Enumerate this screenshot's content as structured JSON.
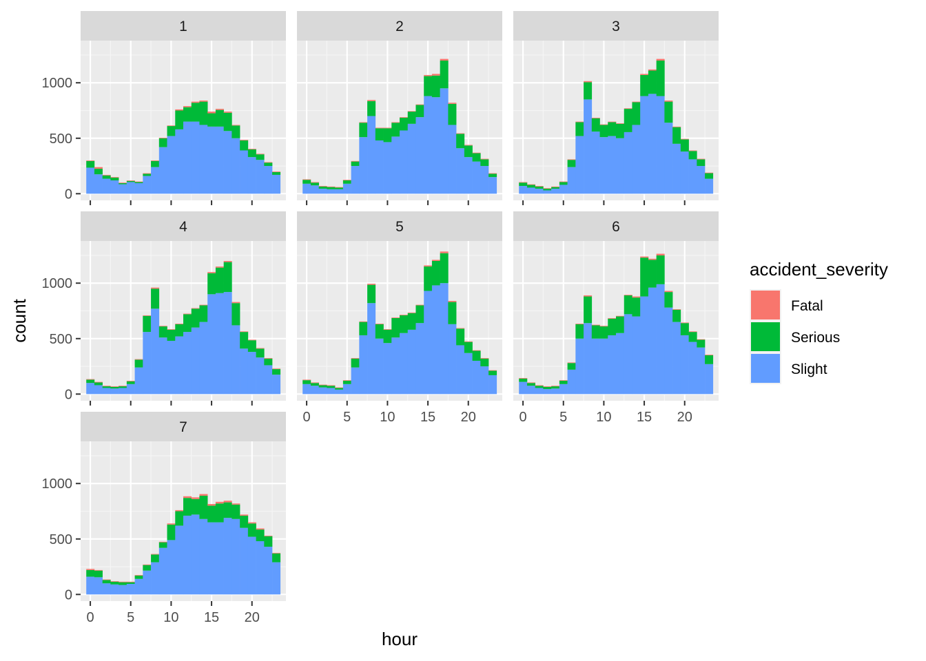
{
  "chart_data": {
    "type": "bar",
    "stacked": true,
    "facet_variable": "day_of_week",
    "panels": [
      "1",
      "2",
      "3",
      "4",
      "5",
      "6",
      "7"
    ],
    "xlabel": "hour",
    "ylabel": "count",
    "x_ticks": [
      0,
      5,
      10,
      15,
      20
    ],
    "y_ticks": [
      0,
      500,
      1000
    ],
    "xlim": [
      -1.2,
      24.2
    ],
    "ylim": [
      -60,
      1380
    ],
    "grid": true,
    "legend": {
      "title": "accident_severity",
      "position": "right",
      "entries": [
        "Fatal",
        "Serious",
        "Slight"
      ]
    },
    "colors": {
      "Fatal": "#F8766D",
      "Serious": "#00BA38",
      "Slight": "#619CFF"
    },
    "hours": [
      0,
      1,
      2,
      3,
      4,
      5,
      6,
      7,
      8,
      9,
      10,
      11,
      12,
      13,
      14,
      15,
      16,
      17,
      18,
      19,
      20,
      21,
      22,
      23
    ],
    "series": {
      "1": {
        "Slight": [
          235,
          175,
          135,
          120,
          85,
          105,
          95,
          160,
          240,
          420,
          520,
          580,
          650,
          650,
          620,
          605,
          605,
          565,
          500,
          390,
          330,
          305,
          250,
          170
        ],
        "Serious": [
          60,
          50,
          30,
          25,
          10,
          10,
          10,
          20,
          55,
          80,
          90,
          170,
          130,
          170,
          210,
          120,
          150,
          165,
          115,
          90,
          70,
          50,
          30,
          25
        ],
        "Fatal": [
          5,
          15,
          5,
          5,
          5,
          5,
          5,
          5,
          5,
          5,
          5,
          10,
          10,
          10,
          10,
          15,
          10,
          10,
          5,
          5,
          5,
          5,
          5,
          5
        ]
      },
      "2": {
        "Slight": [
          90,
          75,
          45,
          40,
          40,
          90,
          250,
          510,
          700,
          480,
          465,
          515,
          570,
          630,
          690,
          880,
          870,
          950,
          620,
          410,
          330,
          290,
          250,
          150
        ],
        "Serious": [
          35,
          25,
          20,
          20,
          15,
          30,
          40,
          130,
          135,
          110,
          125,
          125,
          115,
          110,
          110,
          180,
          195,
          250,
          190,
          130,
          105,
          75,
          60,
          30
        ],
        "Fatal": [
          5,
          5,
          5,
          5,
          5,
          5,
          5,
          5,
          10,
          5,
          5,
          5,
          5,
          5,
          5,
          10,
          15,
          15,
          10,
          5,
          5,
          5,
          5,
          5
        ]
      },
      "3": {
        "Slight": [
          70,
          55,
          45,
          30,
          45,
          80,
          240,
          520,
          850,
          560,
          510,
          520,
          500,
          555,
          620,
          880,
          900,
          880,
          640,
          450,
          380,
          310,
          250,
          135
        ],
        "Serious": [
          30,
          25,
          20,
          15,
          15,
          25,
          65,
          125,
          155,
          120,
          110,
          125,
          130,
          210,
          205,
          190,
          210,
          320,
          190,
          150,
          110,
          75,
          60,
          50
        ],
        "Fatal": [
          5,
          5,
          5,
          5,
          5,
          5,
          5,
          5,
          10,
          5,
          5,
          5,
          5,
          5,
          5,
          10,
          10,
          15,
          10,
          5,
          5,
          5,
          5,
          5
        ]
      },
      "4": {
        "Slight": [
          100,
          80,
          55,
          50,
          55,
          90,
          240,
          560,
          770,
          510,
          480,
          520,
          560,
          600,
          650,
          900,
          910,
          920,
          620,
          410,
          380,
          330,
          260,
          175
        ],
        "Serious": [
          30,
          25,
          15,
          15,
          15,
          25,
          70,
          145,
          180,
          100,
          100,
          110,
          160,
          170,
          150,
          190,
          230,
          270,
          200,
          150,
          105,
          80,
          60,
          50
        ],
        "Fatal": [
          5,
          5,
          5,
          5,
          5,
          5,
          5,
          5,
          10,
          5,
          5,
          5,
          5,
          5,
          5,
          10,
          10,
          10,
          10,
          5,
          5,
          5,
          5,
          5
        ]
      },
      "5": {
        "Slight": [
          90,
          75,
          60,
          55,
          40,
          90,
          240,
          530,
          820,
          500,
          460,
          510,
          550,
          580,
          640,
          930,
          980,
          1000,
          630,
          440,
          370,
          300,
          250,
          170
        ],
        "Serious": [
          35,
          25,
          20,
          20,
          15,
          30,
          80,
          120,
          165,
          130,
          120,
          175,
          160,
          150,
          160,
          220,
          220,
          270,
          200,
          150,
          100,
          90,
          70,
          40
        ],
        "Fatal": [
          5,
          5,
          5,
          5,
          5,
          5,
          5,
          5,
          10,
          5,
          5,
          5,
          5,
          5,
          5,
          10,
          10,
          15,
          10,
          5,
          5,
          5,
          5,
          5
        ]
      },
      "6": {
        "Slight": [
          110,
          75,
          55,
          45,
          50,
          90,
          220,
          500,
          640,
          500,
          500,
          530,
          550,
          720,
          700,
          880,
          960,
          990,
          780,
          650,
          530,
          470,
          420,
          270
        ],
        "Serious": [
          30,
          25,
          20,
          20,
          20,
          30,
          60,
          130,
          240,
          120,
          110,
          150,
          150,
          170,
          170,
          350,
          250,
          260,
          140,
          110,
          110,
          90,
          70,
          80
        ],
        "Fatal": [
          5,
          5,
          5,
          5,
          5,
          5,
          5,
          5,
          10,
          5,
          5,
          5,
          5,
          5,
          10,
          10,
          10,
          15,
          10,
          5,
          5,
          5,
          5,
          5
        ]
      },
      "7": {
        "Slight": [
          160,
          155,
          100,
          90,
          85,
          95,
          140,
          215,
          290,
          420,
          490,
          620,
          710,
          720,
          680,
          650,
          650,
          690,
          680,
          600,
          520,
          480,
          430,
          290
        ],
        "Serious": [
          60,
          60,
          30,
          25,
          25,
          15,
          30,
          50,
          70,
          50,
          140,
          130,
          160,
          140,
          210,
          150,
          170,
          140,
          130,
          110,
          120,
          105,
          95,
          80
        ],
        "Fatal": [
          10,
          5,
          5,
          5,
          5,
          5,
          5,
          5,
          5,
          5,
          10,
          10,
          15,
          15,
          15,
          15,
          15,
          15,
          10,
          10,
          10,
          10,
          5,
          5
        ]
      }
    }
  }
}
